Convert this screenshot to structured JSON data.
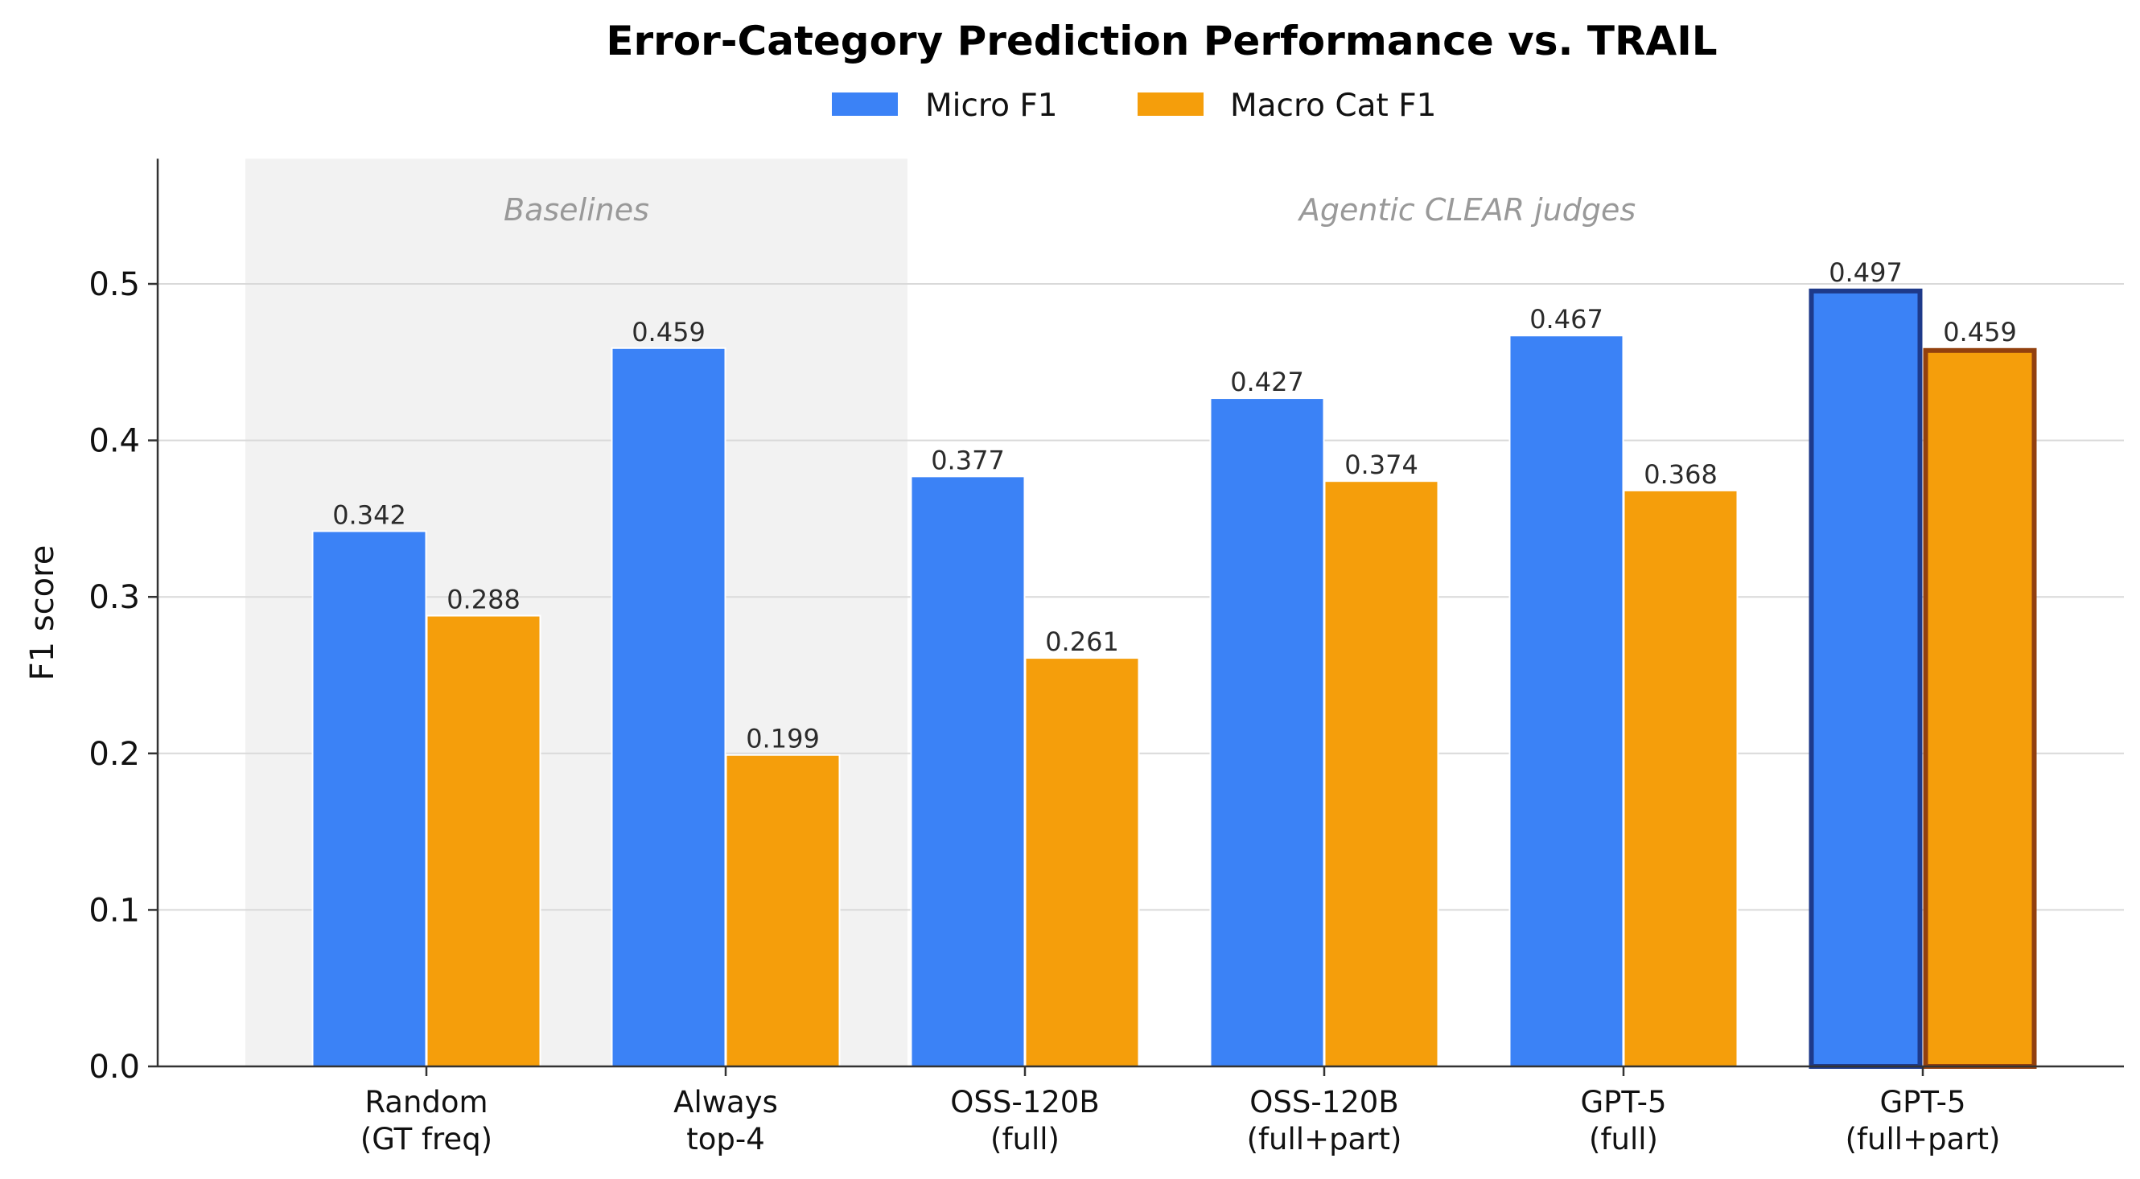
{
  "chart_data": {
    "type": "bar",
    "title": "Error-Category Prediction Performance vs. TRAIL",
    "xlabel": "",
    "ylabel": "F1 score",
    "ylim": [
      0,
      0.58
    ],
    "yticks": [
      "0.0",
      "0.1",
      "0.2",
      "0.3",
      "0.4",
      "0.5"
    ],
    "grid": "horizontal",
    "legend_position": "top-center",
    "categories": [
      [
        "Random",
        "(GT freq)"
      ],
      [
        "Always",
        "top-4"
      ],
      [
        "OSS-120B",
        "(full)"
      ],
      [
        "OSS-120B",
        "(full+part)"
      ],
      [
        "GPT-5",
        "(full)"
      ],
      [
        "GPT-5",
        "(full+part)"
      ]
    ],
    "series": [
      {
        "name": "Micro F1",
        "color": "#3b82f6",
        "values": [
          0.342,
          0.459,
          0.377,
          0.427,
          0.467,
          0.497
        ],
        "labels": [
          "0.342",
          "0.459",
          "0.377",
          "0.427",
          "0.467",
          "0.497"
        ]
      },
      {
        "name": "Macro Cat F1",
        "color": "#f59e0b",
        "values": [
          0.288,
          0.199,
          0.261,
          0.374,
          0.368,
          0.459
        ],
        "labels": [
          "0.288",
          "0.199",
          "0.261",
          "0.374",
          "0.368",
          "0.459"
        ]
      }
    ],
    "highlighted_category": 5,
    "highlight_edge_colors": [
      "#1e3a8a",
      "#92400e"
    ],
    "regions": [
      {
        "label": "Baselines",
        "categories": [
          0,
          1
        ],
        "shaded": true
      },
      {
        "label": "Agentic CLEAR judges",
        "categories": [
          2,
          5
        ],
        "shaded": false
      }
    ]
  }
}
